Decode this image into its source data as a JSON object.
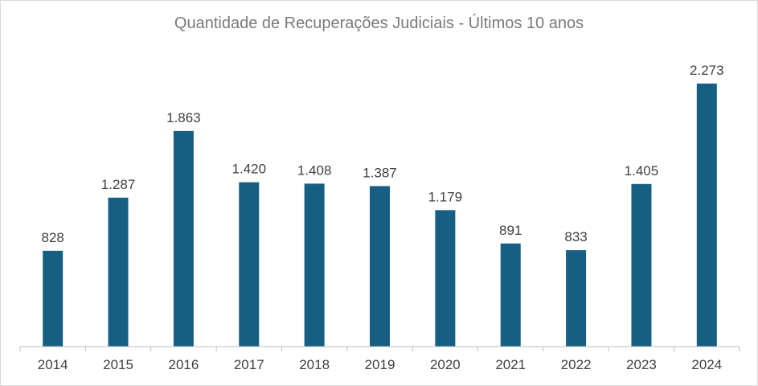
{
  "chart_data": {
    "type": "bar",
    "title": "Quantidade de Recuperações Judiciais - Últimos 10 anos",
    "categories": [
      "2014",
      "2015",
      "2016",
      "2017",
      "2018",
      "2019",
      "2020",
      "2021",
      "2022",
      "2023",
      "2024"
    ],
    "values": [
      828,
      1287,
      1863,
      1420,
      1408,
      1387,
      1179,
      891,
      833,
      1405,
      2273
    ],
    "data_labels": [
      "828",
      "1.287",
      "1.863",
      "1.420",
      "1.408",
      "1.387",
      "1.179",
      "891",
      "833",
      "1.405",
      "2.273"
    ],
    "xlabel": "",
    "ylabel": "",
    "ylim": [
      0,
      2300
    ],
    "y_axis_visible": false,
    "grid": false,
    "legend": "none",
    "colors": {
      "bar": "#165F82",
      "axis": "#bfbfbf",
      "text": "#404040",
      "title": "#7a7a7a"
    }
  }
}
